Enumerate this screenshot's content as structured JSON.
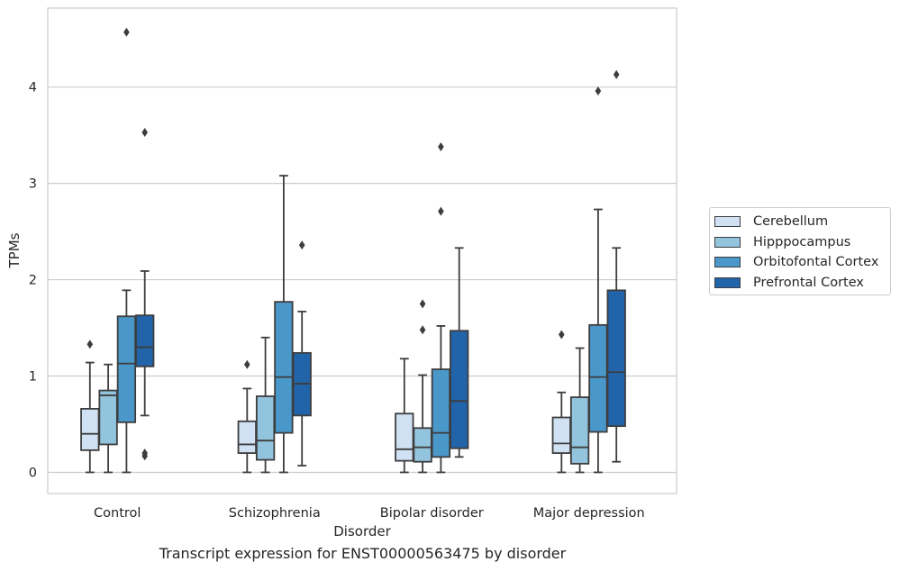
{
  "caption": "Transcript expression for ENST00000563475 by disorder",
  "chart_data": {
    "type": "boxplot",
    "title": "",
    "xlabel": "Disorder",
    "ylabel": "TPMs",
    "ylim": [
      -0.22,
      4.82
    ],
    "yticks": [
      0,
      1,
      2,
      3,
      4
    ],
    "grid": "horizontal",
    "legend_position": "right",
    "categories": [
      "Control",
      "Schizophrenia",
      "Bipolar disorder",
      "Major depression"
    ],
    "series": [
      {
        "name": "Cerebellum",
        "color": "#cfe1f2",
        "boxes": [
          {
            "whisker_low": 0.0,
            "q1": 0.23,
            "median": 0.4,
            "q3": 0.66,
            "whisker_high": 1.14,
            "outliers": [
              1.33
            ]
          },
          {
            "whisker_low": 0.0,
            "q1": 0.2,
            "median": 0.29,
            "q3": 0.53,
            "whisker_high": 0.87,
            "outliers": [
              1.12
            ]
          },
          {
            "whisker_low": 0.0,
            "q1": 0.12,
            "median": 0.24,
            "q3": 0.61,
            "whisker_high": 1.18,
            "outliers": []
          },
          {
            "whisker_low": 0.0,
            "q1": 0.2,
            "median": 0.3,
            "q3": 0.57,
            "whisker_high": 0.83,
            "outliers": [
              1.43
            ]
          }
        ]
      },
      {
        "name": "Hipppocampus",
        "color": "#93c4de",
        "boxes": [
          {
            "whisker_low": 0.0,
            "q1": 0.29,
            "median": 0.8,
            "q3": 0.85,
            "whisker_high": 1.12,
            "outliers": []
          },
          {
            "whisker_low": 0.0,
            "q1": 0.13,
            "median": 0.33,
            "q3": 0.79,
            "whisker_high": 1.4,
            "outliers": []
          },
          {
            "whisker_low": 0.0,
            "q1": 0.11,
            "median": 0.26,
            "q3": 0.46,
            "whisker_high": 1.01,
            "outliers": [
              1.48,
              1.75
            ]
          },
          {
            "whisker_low": 0.0,
            "q1": 0.09,
            "median": 0.26,
            "q3": 0.78,
            "whisker_high": 1.29,
            "outliers": []
          }
        ]
      },
      {
        "name": "Orbitofontal Cortex",
        "color": "#4a98c9",
        "boxes": [
          {
            "whisker_low": 0.0,
            "q1": 0.52,
            "median": 1.13,
            "q3": 1.62,
            "whisker_high": 1.89,
            "outliers": [
              4.57
            ]
          },
          {
            "whisker_low": 0.0,
            "q1": 0.41,
            "median": 0.99,
            "q3": 1.77,
            "whisker_high": 3.08,
            "outliers": []
          },
          {
            "whisker_low": 0.0,
            "q1": 0.16,
            "median": 0.41,
            "q3": 1.07,
            "whisker_high": 1.52,
            "outliers": [
              2.71,
              3.38
            ]
          },
          {
            "whisker_low": 0.0,
            "q1": 0.42,
            "median": 0.99,
            "q3": 1.53,
            "whisker_high": 2.73,
            "outliers": [
              3.96
            ]
          }
        ]
      },
      {
        "name": "Prefrontal Cortex",
        "color": "#2264aa",
        "boxes": [
          {
            "whisker_low": 0.59,
            "q1": 1.1,
            "median": 1.3,
            "q3": 1.63,
            "whisker_high": 2.09,
            "outliers": [
              0.17,
              0.2,
              3.53
            ]
          },
          {
            "whisker_low": 0.07,
            "q1": 0.59,
            "median": 0.92,
            "q3": 1.24,
            "whisker_high": 1.67,
            "outliers": [
              2.36
            ]
          },
          {
            "whisker_low": 0.16,
            "q1": 0.25,
            "median": 0.74,
            "q3": 1.47,
            "whisker_high": 2.33,
            "outliers": []
          },
          {
            "whisker_low": 0.11,
            "q1": 0.48,
            "median": 1.04,
            "q3": 1.89,
            "whisker_high": 2.33,
            "outliers": [
              4.13
            ]
          }
        ]
      }
    ]
  }
}
